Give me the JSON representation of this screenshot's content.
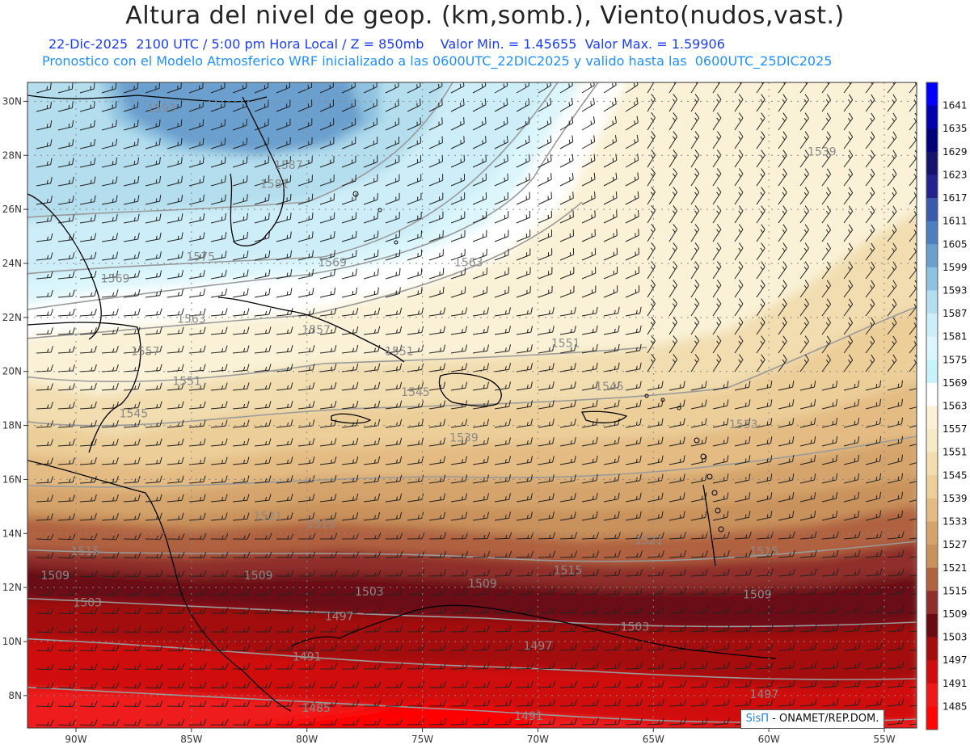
{
  "header": {
    "title": "Altura del nivel de geop. (km,somb.), Viento(nudos,vast.)",
    "line1": "22-Dic-2025  2100 UTC / 5:00 pm Hora Local / Z = 850mb    Valor Min. = 1.45655  Valor Max. = 1.59906",
    "line2": "Pronostico con el Modelo Atmosferico WRF inicializado a las 0600UTC_22DIC2025 y valido hasta las  0600UTC_25DIC2025"
  },
  "map": {
    "lon_range": [
      -92.1,
      -53.6
    ],
    "lat_range": [
      6.8,
      30.7
    ],
    "lon_ticks": [
      {
        "lon": -90,
        "label": "90W"
      },
      {
        "lon": -85,
        "label": "85W"
      },
      {
        "lon": -80,
        "label": "80W"
      },
      {
        "lon": -75,
        "label": "75W"
      },
      {
        "lon": -70,
        "label": "70W"
      },
      {
        "lon": -65,
        "label": "65W"
      },
      {
        "lon": -60,
        "label": "60W"
      },
      {
        "lon": -55,
        "label": "55W"
      }
    ],
    "lat_ticks": [
      {
        "lat": 8,
        "label": "8N"
      },
      {
        "lat": 10,
        "label": "10N"
      },
      {
        "lat": 12,
        "label": "12N"
      },
      {
        "lat": 14,
        "label": "14N"
      },
      {
        "lat": 16,
        "label": "16N"
      },
      {
        "lat": 18,
        "label": "18N"
      },
      {
        "lat": 20,
        "label": "20N"
      },
      {
        "lat": 22,
        "label": "22N"
      },
      {
        "lat": 24,
        "label": "24N"
      },
      {
        "lat": 26,
        "label": "26N"
      },
      {
        "lat": 28,
        "label": "28N"
      },
      {
        "lat": 30,
        "label": "30N"
      }
    ],
    "contour_labels": [
      {
        "text": "1593",
        "lon": -86.3,
        "lat": 29.6
      },
      {
        "text": "1587",
        "lon": -80.8,
        "lat": 27.5
      },
      {
        "text": "1581",
        "lon": -81.4,
        "lat": 26.8
      },
      {
        "text": "1575",
        "lon": -84.6,
        "lat": 24.1
      },
      {
        "text": "1569",
        "lon": -88.3,
        "lat": 23.3
      },
      {
        "text": "1569",
        "lon": -78.9,
        "lat": 23.9
      },
      {
        "text": "1563",
        "lon": -73.0,
        "lat": 23.9
      },
      {
        "text": "1563",
        "lon": -85.0,
        "lat": 21.8
      },
      {
        "text": "1557",
        "lon": -87.0,
        "lat": 20.6
      },
      {
        "text": "1557",
        "lon": -79.6,
        "lat": 21.4
      },
      {
        "text": "1551",
        "lon": -85.2,
        "lat": 19.5
      },
      {
        "text": "1551",
        "lon": -76.0,
        "lat": 20.6
      },
      {
        "text": "1551",
        "lon": -68.8,
        "lat": 20.9
      },
      {
        "text": "1545",
        "lon": -87.5,
        "lat": 18.3
      },
      {
        "text": "1545",
        "lon": -75.3,
        "lat": 19.1
      },
      {
        "text": "1545",
        "lon": -66.9,
        "lat": 19.3
      },
      {
        "text": "1539",
        "lon": -57.7,
        "lat": 28.0
      },
      {
        "text": "1539",
        "lon": -73.2,
        "lat": 17.4
      },
      {
        "text": "1533",
        "lon": -61.1,
        "lat": 17.9
      },
      {
        "text": "1521",
        "lon": -81.7,
        "lat": 14.5
      },
      {
        "text": "1521",
        "lon": -65.2,
        "lat": 13.6
      },
      {
        "text": "1515",
        "lon": -89.6,
        "lat": 13.2
      },
      {
        "text": "1515",
        "lon": -79.4,
        "lat": 14.2
      },
      {
        "text": "1515",
        "lon": -68.7,
        "lat": 12.5
      },
      {
        "text": "1515",
        "lon": -60.2,
        "lat": 13.2
      },
      {
        "text": "1509",
        "lon": -90.9,
        "lat": 12.3
      },
      {
        "text": "1509",
        "lon": -82.1,
        "lat": 12.3
      },
      {
        "text": "1509",
        "lon": -72.4,
        "lat": 12.0
      },
      {
        "text": "1509",
        "lon": -60.5,
        "lat": 11.6
      },
      {
        "text": "1503",
        "lon": -89.5,
        "lat": 11.3
      },
      {
        "text": "1503",
        "lon": -77.3,
        "lat": 11.7
      },
      {
        "text": "1503",
        "lon": -65.8,
        "lat": 10.4
      },
      {
        "text": "1497",
        "lon": -78.6,
        "lat": 10.8
      },
      {
        "text": "1497",
        "lon": -70.0,
        "lat": 9.7
      },
      {
        "text": "1497",
        "lon": -60.2,
        "lat": 7.9
      },
      {
        "text": "1491",
        "lon": -80.0,
        "lat": 9.3
      },
      {
        "text": "1491",
        "lon": -70.4,
        "lat": 7.1
      },
      {
        "text": "1485",
        "lon": -79.6,
        "lat": 7.4
      }
    ]
  },
  "colorbar": {
    "levels": [
      "1641",
      "1635",
      "1629",
      "1623",
      "1617",
      "1611",
      "1605",
      "1599",
      "1593",
      "1587",
      "1581",
      "1575",
      "1569",
      "1563",
      "1557",
      "1551",
      "1545",
      "1539",
      "1533",
      "1527",
      "1521",
      "1515",
      "1509",
      "1503",
      "1497",
      "1491",
      "1485"
    ],
    "colors": [
      "#0000ff",
      "#0000b0",
      "#00007a",
      "#14146e",
      "#23238f",
      "#3a5aab",
      "#4e80bf",
      "#6a9fce",
      "#8fc2e0",
      "#b4deee",
      "#cdeef8",
      "#dbf6fc",
      "#c7f3fb",
      "#ffffff",
      "#faf1d6",
      "#f7ebc6",
      "#f1ddb0",
      "#ecce99",
      "#e3bb83",
      "#d4a46c",
      "#c9925c",
      "#b06241",
      "#8f2e2c",
      "#6a0b14",
      "#a30d0d",
      "#d00d0d",
      "#ee1a1a",
      "#ff0505"
    ]
  },
  "credit": {
    "brand": "SisΠ",
    "text": " - ONAMET/REP.DOM."
  },
  "colors": {
    "title": "#222222",
    "subtitle_1": "#1a3cff",
    "subtitle_2": "#1e90ff",
    "coastline": "#000000",
    "contour": "#9a9a9a",
    "wind_barb": "#222222"
  }
}
